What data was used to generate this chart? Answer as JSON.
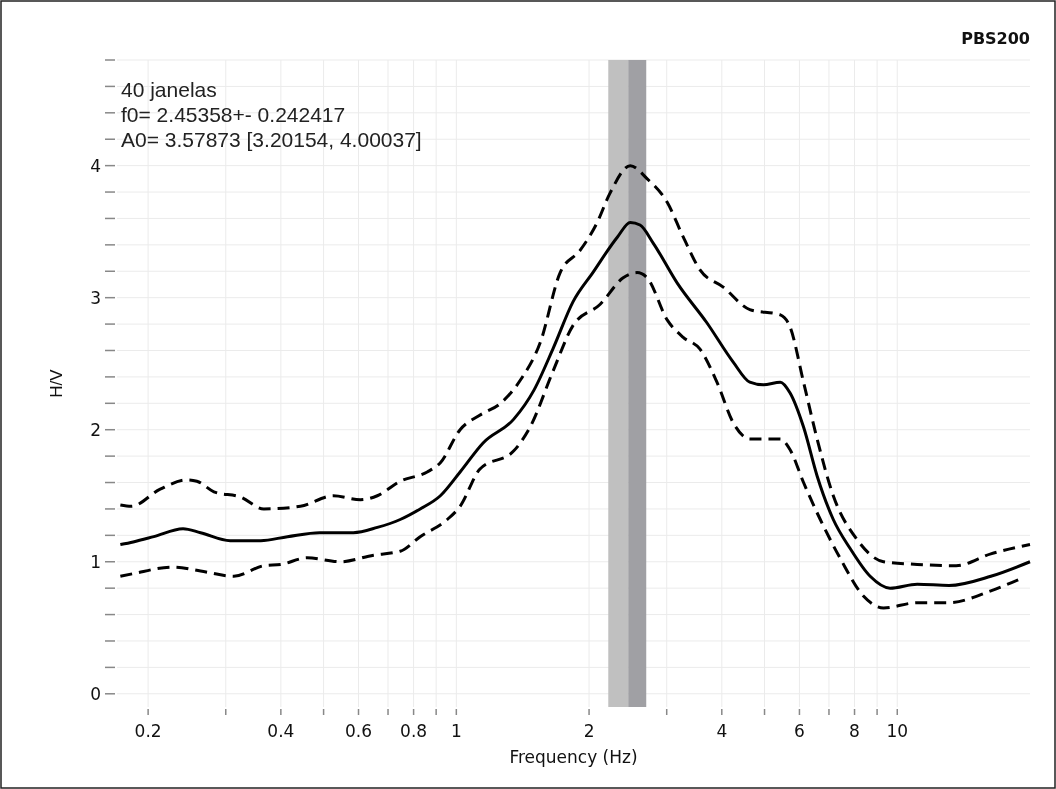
{
  "chart_data": {
    "type": "line",
    "title": "PBS200",
    "xlabel": "Frequency (Hz)",
    "ylabel": "H/V",
    "annotations": [
      "40 janelas",
      "f0= 2.45358+- 0.242417",
      "A0= 3.57873 [3.20154, 4.00037]"
    ],
    "log": "x",
    "grid": true,
    "marker": "none",
    "xlim": [
      0.17,
      20
    ],
    "ylim": [
      -0.1,
      4.8
    ],
    "xticks": [
      0.2,
      {
        "value": 0.3,
        "label": null
      },
      0.4,
      {
        "value": 0.5,
        "label": null
      },
      0.6,
      {
        "value": 0.7,
        "label": null
      },
      0.8,
      {
        "value": 0.9,
        "label": null
      },
      1,
      2,
      {
        "value": 3,
        "label": null
      },
      4,
      {
        "value": 5,
        "label": null
      },
      6,
      {
        "value": 7,
        "label": null
      },
      8,
      {
        "value": 9,
        "label": null
      },
      10
    ],
    "yticks": [
      0,
      {
        "value": 0.2,
        "label": null
      },
      {
        "value": 0.4,
        "label": null
      },
      {
        "value": 0.6,
        "label": null
      },
      {
        "value": 0.8,
        "label": null
      },
      1,
      {
        "value": 1.2,
        "label": null
      },
      {
        "value": 1.4,
        "label": null
      },
      {
        "value": 1.6,
        "label": null
      },
      {
        "value": 1.8,
        "label": null
      },
      2,
      {
        "value": 2.2,
        "label": null
      },
      {
        "value": 2.4,
        "label": null
      },
      {
        "value": 2.6,
        "label": null
      },
      {
        "value": 2.8,
        "label": null
      },
      3,
      {
        "value": 3.2,
        "label": null
      },
      {
        "value": 3.4,
        "label": null
      },
      {
        "value": 3.6,
        "label": null
      },
      {
        "value": 3.8,
        "label": null
      },
      4,
      {
        "value": 4.2,
        "label": null
      },
      {
        "value": 4.4,
        "label": null
      },
      {
        "value": 4.6,
        "label": null
      },
      {
        "value": 4.8,
        "label": null
      }
    ],
    "bands": [
      {
        "axis": "x",
        "from": 2.21117,
        "to": 2.45358,
        "color": "#c0c0c0"
      },
      {
        "axis": "x",
        "from": 2.45358,
        "to": 2.696,
        "color": "#a0a0a4"
      }
    ],
    "series": [
      {
        "color": "#000000",
        "line_style": "solid",
        "x": [
          0.173,
          0.185,
          0.206,
          0.24,
          0.263,
          0.307,
          0.36,
          0.414,
          0.49,
          0.584,
          0.662,
          0.746,
          0.828,
          0.92,
          1.02,
          1.15,
          1.35,
          1.5,
          1.66,
          1.84,
          2.04,
          2.32,
          2.48,
          2.61,
          2.8,
          3.17,
          3.7,
          4.25,
          4.63,
          4.97,
          5.43,
          5.71,
          6.13,
          6.58,
          7.16,
          7.82,
          8.68,
          9.63,
          11.1,
          13.1,
          16.3,
          20
        ],
        "values": [
          1.13,
          1.15,
          1.19,
          1.25,
          1.22,
          1.16,
          1.16,
          1.19,
          1.22,
          1.22,
          1.26,
          1.32,
          1.4,
          1.5,
          1.68,
          1.9,
          2.08,
          2.3,
          2.62,
          2.97,
          3.19,
          3.46,
          3.57,
          3.55,
          3.41,
          3.11,
          2.81,
          2.51,
          2.36,
          2.34,
          2.36,
          2.28,
          2.02,
          1.65,
          1.32,
          1.1,
          0.89,
          0.8,
          0.83,
          0.82,
          0.89,
          1.0
        ]
      },
      {
        "color": "#000000",
        "line_style": "dashed",
        "x": [
          0.173,
          0.183,
          0.213,
          0.245,
          0.258,
          0.282,
          0.324,
          0.366,
          0.443,
          0.526,
          0.606,
          0.662,
          0.746,
          0.859,
          0.92,
          1.02,
          1.13,
          1.26,
          1.4,
          1.55,
          1.72,
          1.91,
          2.08,
          2.23,
          2.48,
          2.71,
          3.01,
          3.27,
          3.57,
          4.03,
          4.63,
          5.43,
          5.71,
          6.13,
          6.58,
          7.16,
          8.1,
          9.31,
          11.1,
          13.6,
          16.3,
          20
        ],
        "values": [
          1.43,
          1.42,
          1.55,
          1.62,
          1.61,
          1.53,
          1.49,
          1.4,
          1.42,
          1.5,
          1.47,
          1.5,
          1.61,
          1.68,
          1.75,
          2.0,
          2.11,
          2.2,
          2.38,
          2.66,
          3.19,
          3.36,
          3.56,
          3.79,
          4.0,
          3.9,
          3.72,
          3.46,
          3.21,
          3.08,
          2.91,
          2.87,
          2.78,
          2.36,
          1.93,
          1.5,
          1.17,
          1.0,
          0.98,
          0.97,
          1.06,
          1.13
        ]
      },
      {
        "color": "#000000",
        "line_style": "dashed",
        "x": [
          0.173,
          0.185,
          0.228,
          0.263,
          0.313,
          0.366,
          0.4,
          0.459,
          0.546,
          0.649,
          0.746,
          0.828,
          0.954,
          1.02,
          1.13,
          1.35,
          1.47,
          1.66,
          1.84,
          2.12,
          2.39,
          2.57,
          2.71,
          3.01,
          3.27,
          3.57,
          3.9,
          4.25,
          4.63,
          5.43,
          5.71,
          6.13,
          6.69,
          7.44,
          8.38,
          9.31,
          11.1,
          13.1,
          16.3,
          19.3
        ],
        "values": [
          0.89,
          0.91,
          0.96,
          0.93,
          0.89,
          0.97,
          0.98,
          1.03,
          1.0,
          1.05,
          1.08,
          1.19,
          1.32,
          1.42,
          1.7,
          1.84,
          2.02,
          2.45,
          2.79,
          2.95,
          3.15,
          3.19,
          3.15,
          2.83,
          2.7,
          2.61,
          2.36,
          2.05,
          1.93,
          1.93,
          1.85,
          1.6,
          1.32,
          1.02,
          0.74,
          0.65,
          0.69,
          0.69,
          0.78,
          0.88
        ]
      }
    ]
  }
}
